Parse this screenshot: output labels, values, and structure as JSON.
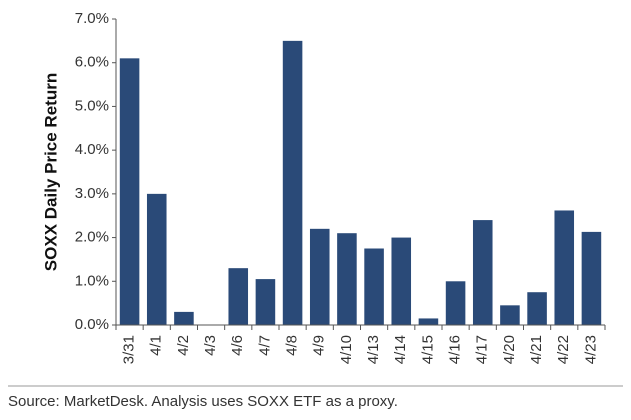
{
  "chart_data": {
    "type": "bar",
    "ylabel": "SOXX Daily Price Return",
    "xlabel": "",
    "title": "",
    "categories": [
      "3/31",
      "4/1",
      "4/2",
      "4/3",
      "4/6",
      "4/7",
      "4/8",
      "4/9",
      "4/10",
      "4/13",
      "4/14",
      "4/15",
      "4/16",
      "4/17",
      "4/20",
      "4/21",
      "4/22",
      "4/23"
    ],
    "values": [
      6.1,
      3.0,
      0.3,
      0.0,
      1.3,
      1.05,
      6.5,
      2.2,
      2.1,
      1.75,
      2.0,
      0.15,
      1.0,
      2.4,
      0.45,
      0.75,
      2.62,
      2.13
    ],
    "ylim": [
      0,
      7
    ],
    "yticks": [
      "0.0%",
      "1.0%",
      "2.0%",
      "3.0%",
      "4.0%",
      "5.0%",
      "6.0%",
      "7.0%"
    ],
    "grid": false,
    "bar_color": "#2a4a78",
    "source": "Source: MarketDesk. Analysis uses SOXX ETF as a proxy."
  }
}
